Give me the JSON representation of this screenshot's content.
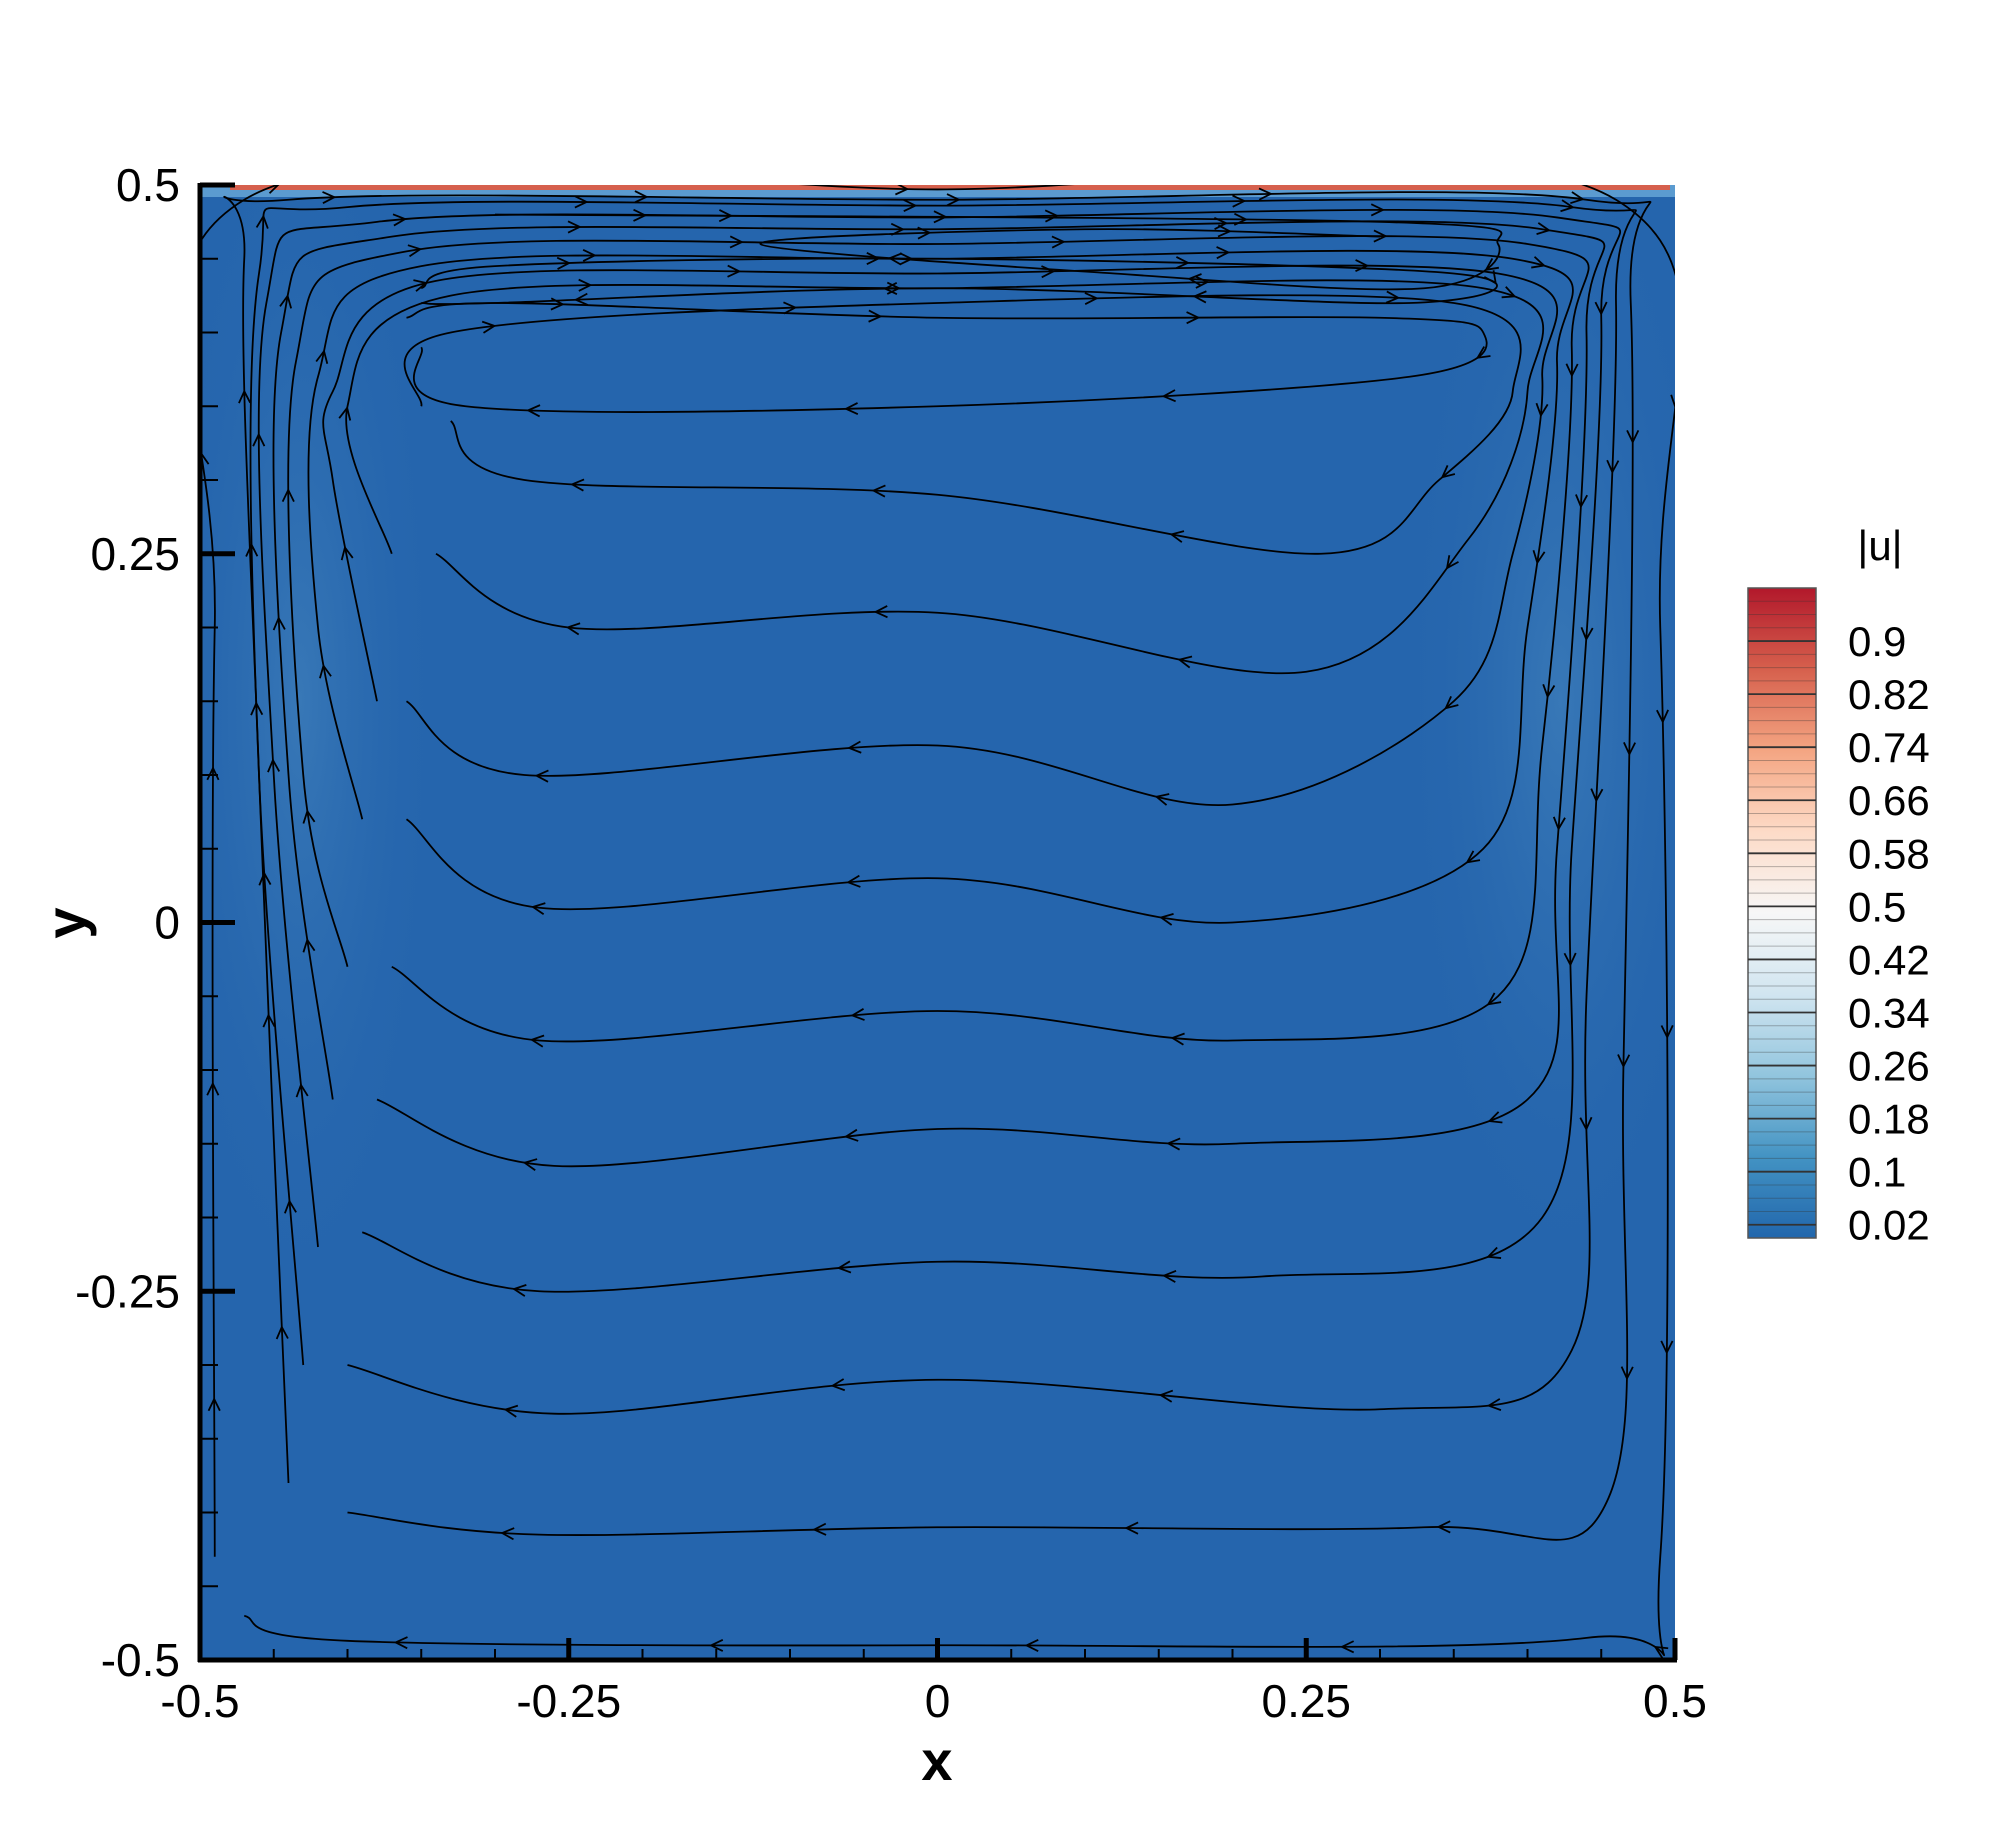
{
  "chart_data": {
    "type": "contour",
    "xlabel": "x",
    "ylabel": "y",
    "xlim": [
      -0.5,
      0.5
    ],
    "ylim": [
      -0.5,
      0.5
    ],
    "x_ticks": [
      "-0.5",
      "-0.25",
      "0",
      "0.25",
      "0.5"
    ],
    "y_ticks": [
      "-0.5",
      "-0.25",
      "0",
      "0.25",
      "0.5"
    ],
    "x_tick_values": [
      -0.5,
      -0.25,
      0,
      0.25,
      0.5
    ],
    "y_tick_values": [
      -0.5,
      -0.25,
      0,
      0.25,
      0.5
    ],
    "colorbar": {
      "title": "|u|",
      "labels": [
        "0.9",
        "0.82",
        "0.74",
        "0.66",
        "0.58",
        "0.5",
        "0.42",
        "0.34",
        "0.26",
        "0.18",
        "0.1",
        "0.02"
      ],
      "values": [
        0.9,
        0.82,
        0.74,
        0.66,
        0.58,
        0.5,
        0.42,
        0.34,
        0.26,
        0.18,
        0.1,
        0.02
      ],
      "range": [
        0.0,
        0.98
      ],
      "colors": [
        "#2166ac",
        "#4393c3",
        "#92c5de",
        "#d1e5f0",
        "#f7f7f7",
        "#fddbc7",
        "#f4a582",
        "#d6604d",
        "#b2182b"
      ]
    },
    "field_background_color": "#2565ad",
    "lid_color": "#d6604d",
    "streamlines": {
      "description_direction": "clockwise circulation driven by top lid moving in +x",
      "curves": [
        [
          [
            -0.49,
            -0.43
          ],
          [
            -0.49,
            0.2
          ],
          [
            -0.47,
            0.49
          ],
          [
            0.0,
            0.497
          ],
          [
            0.46,
            0.49
          ],
          [
            0.49,
            0.2
          ],
          [
            0.49,
            -0.43
          ],
          [
            0.44,
            -0.485
          ],
          [
            0.0,
            -0.49
          ],
          [
            -0.4,
            -0.487
          ],
          [
            -0.47,
            -0.47
          ]
        ],
        [
          [
            -0.44,
            -0.38
          ],
          [
            -0.46,
            0.1
          ],
          [
            -0.47,
            0.45
          ],
          [
            -0.44,
            0.49
          ],
          [
            0.0,
            0.49
          ],
          [
            0.44,
            0.49
          ],
          [
            0.47,
            0.42
          ],
          [
            0.465,
            -0.1
          ],
          [
            0.455,
            -0.39
          ],
          [
            0.33,
            -0.41
          ],
          [
            0.0,
            -0.41
          ],
          [
            -0.27,
            -0.415
          ],
          [
            -0.4,
            -0.4
          ]
        ],
        [
          [
            -0.43,
            -0.3
          ],
          [
            -0.46,
            0.1
          ],
          [
            -0.46,
            0.44
          ],
          [
            -0.4,
            0.485
          ],
          [
            0.0,
            0.486
          ],
          [
            0.43,
            0.485
          ],
          [
            0.46,
            0.42
          ],
          [
            0.44,
            -0.05
          ],
          [
            0.43,
            -0.29
          ],
          [
            0.3,
            -0.33
          ],
          [
            0.0,
            -0.31
          ],
          [
            -0.26,
            -0.333
          ],
          [
            -0.4,
            -0.3
          ]
        ],
        [
          [
            -0.42,
            -0.22
          ],
          [
            -0.45,
            0.1
          ],
          [
            -0.455,
            0.42
          ],
          [
            -0.38,
            0.475
          ],
          [
            0.0,
            0.478
          ],
          [
            0.42,
            0.478
          ],
          [
            0.45,
            0.41
          ],
          [
            0.43,
            0.05
          ],
          [
            0.41,
            -0.2
          ],
          [
            0.22,
            -0.24
          ],
          [
            0.0,
            -0.23
          ],
          [
            -0.27,
            -0.25
          ],
          [
            -0.39,
            -0.21
          ]
        ],
        [
          [
            -0.41,
            -0.12
          ],
          [
            -0.44,
            0.1
          ],
          [
            -0.445,
            0.4
          ],
          [
            -0.37,
            0.465
          ],
          [
            0.0,
            0.47
          ],
          [
            0.41,
            0.47
          ],
          [
            0.44,
            0.4
          ],
          [
            0.42,
            0.05
          ],
          [
            0.4,
            -0.12
          ],
          [
            0.2,
            -0.15
          ],
          [
            0.0,
            -0.14
          ],
          [
            -0.26,
            -0.165
          ],
          [
            -0.38,
            -0.12
          ]
        ],
        [
          [
            -0.4,
            -0.03
          ],
          [
            -0.43,
            0.1
          ],
          [
            -0.435,
            0.38
          ],
          [
            -0.36,
            0.455
          ],
          [
            0.0,
            0.46
          ],
          [
            0.4,
            0.46
          ],
          [
            0.43,
            0.39
          ],
          [
            0.41,
            0.12
          ],
          [
            0.38,
            -0.05
          ],
          [
            0.2,
            -0.08
          ],
          [
            0.0,
            -0.06
          ],
          [
            -0.27,
            -0.08
          ],
          [
            -0.37,
            -0.03
          ]
        ],
        [
          [
            -0.39,
            0.07
          ],
          [
            -0.42,
            0.2
          ],
          [
            -0.42,
            0.37
          ],
          [
            -0.35,
            0.445
          ],
          [
            0.0,
            0.45
          ],
          [
            0.39,
            0.45
          ],
          [
            0.42,
            0.38
          ],
          [
            0.4,
            0.2
          ],
          [
            0.37,
            0.05
          ],
          [
            0.2,
            0.0
          ],
          [
            0.0,
            0.03
          ],
          [
            -0.27,
            0.01
          ],
          [
            -0.36,
            0.07
          ]
        ],
        [
          [
            -0.38,
            0.15
          ],
          [
            -0.41,
            0.3
          ],
          [
            -0.41,
            0.36
          ],
          [
            -0.34,
            0.435
          ],
          [
            0.0,
            0.44
          ],
          [
            0.38,
            0.44
          ],
          [
            0.41,
            0.37
          ],
          [
            0.39,
            0.25
          ],
          [
            0.35,
            0.15
          ],
          [
            0.2,
            0.08
          ],
          [
            0.0,
            0.12
          ],
          [
            -0.28,
            0.1
          ],
          [
            -0.36,
            0.15
          ]
        ],
        [
          [
            -0.37,
            0.25
          ],
          [
            -0.4,
            0.35
          ],
          [
            -0.33,
            0.425
          ],
          [
            0.0,
            0.43
          ],
          [
            0.37,
            0.43
          ],
          [
            0.4,
            0.36
          ],
          [
            0.36,
            0.26
          ],
          [
            0.25,
            0.17
          ],
          [
            0.0,
            0.21
          ],
          [
            -0.25,
            0.2
          ],
          [
            -0.34,
            0.25
          ]
        ],
        [
          [
            -0.35,
            0.35
          ],
          [
            -0.33,
            0.4
          ],
          [
            0.0,
            0.42
          ],
          [
            0.35,
            0.42
          ],
          [
            0.39,
            0.36
          ],
          [
            0.34,
            0.3
          ],
          [
            0.26,
            0.25
          ],
          [
            0.0,
            0.29
          ],
          [
            -0.28,
            0.3
          ],
          [
            -0.33,
            0.34
          ]
        ],
        [
          [
            -0.36,
            0.41
          ],
          [
            -0.3,
            0.42
          ],
          [
            0.0,
            0.41
          ],
          [
            0.3,
            0.41
          ],
          [
            0.37,
            0.4
          ],
          [
            0.32,
            0.37
          ],
          [
            0.0,
            0.35
          ],
          [
            -0.32,
            0.35
          ],
          [
            -0.35,
            0.39
          ]
        ],
        [
          [
            -0.35,
            0.43
          ],
          [
            -0.3,
            0.445
          ],
          [
            0.0,
            0.45
          ],
          [
            0.35,
            0.44
          ],
          [
            0.32,
            0.42
          ],
          [
            0.0,
            0.43
          ],
          [
            -0.3,
            0.42
          ],
          [
            -0.35,
            0.42
          ]
        ],
        [
          [
            -0.3,
            0.48
          ],
          [
            0.3,
            0.475
          ],
          [
            0.38,
            0.46
          ],
          [
            0.33,
            0.43
          ],
          [
            0.12,
            0.44
          ],
          [
            -0.12,
            0.46
          ],
          [
            0.1,
            0.47
          ],
          [
            0.3,
            0.465
          ]
        ]
      ]
    }
  }
}
